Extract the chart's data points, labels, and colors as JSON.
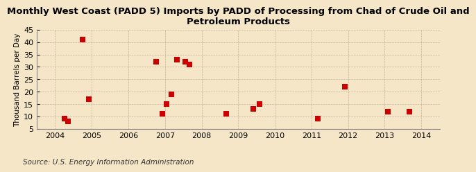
{
  "title_line1": "Monthly West Coast (PADD 5) Imports by PADD of Processing from Chad of Crude Oil and",
  "title_line2": "Petroleum Products",
  "ylabel": "Thousand Barrels per Day",
  "source": "Source: U.S. Energy Information Administration",
  "background_color": "#f5e6c8",
  "plot_bg_color": "#f5e6c8",
  "marker_color": "#cc0000",
  "marker_size": 28,
  "xlim": [
    2003.5,
    2014.5
  ],
  "ylim": [
    5,
    45
  ],
  "yticks": [
    5,
    10,
    15,
    20,
    25,
    30,
    35,
    40,
    45
  ],
  "xticks": [
    2004,
    2005,
    2006,
    2007,
    2008,
    2009,
    2010,
    2011,
    2012,
    2013,
    2014
  ],
  "data_x": [
    2004.25,
    2004.35,
    2004.75,
    2004.92,
    2006.75,
    2006.92,
    2007.05,
    2007.17,
    2007.33,
    2007.55,
    2007.67,
    2008.67,
    2009.42,
    2009.58,
    2011.17,
    2011.92,
    2013.08,
    2013.67
  ],
  "data_y": [
    9,
    8,
    41,
    17,
    32,
    11,
    15,
    19,
    33,
    32,
    31,
    11,
    13,
    15,
    9,
    22,
    12,
    12
  ],
  "title_fontsize": 9.5,
  "axis_fontsize": 8,
  "ylabel_fontsize": 7.5,
  "source_fontsize": 7.5
}
